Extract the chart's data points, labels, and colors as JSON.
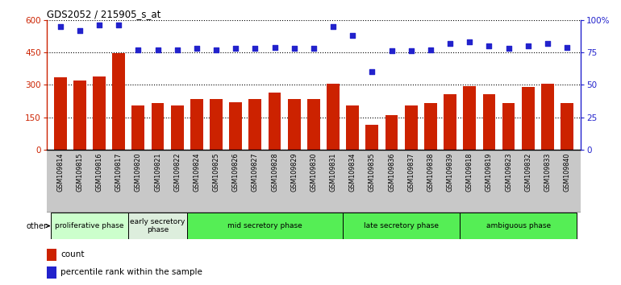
{
  "title": "GDS2052 / 215905_s_at",
  "samples": [
    "GSM109814",
    "GSM109815",
    "GSM109816",
    "GSM109817",
    "GSM109820",
    "GSM109821",
    "GSM109822",
    "GSM109824",
    "GSM109825",
    "GSM109826",
    "GSM109827",
    "GSM109828",
    "GSM109829",
    "GSM109830",
    "GSM109831",
    "GSM109834",
    "GSM109835",
    "GSM109836",
    "GSM109837",
    "GSM109838",
    "GSM109839",
    "GSM109818",
    "GSM109819",
    "GSM109823",
    "GSM109832",
    "GSM109833",
    "GSM109840"
  ],
  "counts": [
    335,
    320,
    340,
    445,
    205,
    215,
    205,
    235,
    235,
    220,
    235,
    265,
    235,
    235,
    305,
    205,
    115,
    160,
    205,
    215,
    255,
    295,
    255,
    215,
    290,
    305,
    215
  ],
  "percentiles": [
    95,
    92,
    96,
    96,
    77,
    77,
    77,
    78,
    77,
    78,
    78,
    79,
    78,
    78,
    95,
    88,
    60,
    76,
    76,
    77,
    82,
    83,
    80,
    78,
    80,
    82,
    79
  ],
  "phases": [
    {
      "label": "proliferative phase",
      "start": 0,
      "end": 3,
      "color": "#ccffcc"
    },
    {
      "label": "early secretory\nphase",
      "start": 4,
      "end": 6,
      "color": "#ddeedd"
    },
    {
      "label": "mid secretory phase",
      "start": 7,
      "end": 14,
      "color": "#55ee55"
    },
    {
      "label": "late secretory phase",
      "start": 15,
      "end": 20,
      "color": "#55ee55"
    },
    {
      "label": "ambiguous phase",
      "start": 21,
      "end": 26,
      "color": "#55ee55"
    }
  ],
  "bar_color": "#cc2200",
  "dot_color": "#2222cc",
  "ylim_left": [
    0,
    600
  ],
  "ylim_right": [
    0,
    100
  ],
  "yticks_left": [
    0,
    150,
    300,
    450,
    600
  ],
  "yticks_right": [
    0,
    25,
    50,
    75,
    100
  ],
  "tick_bg_color": "#c8c8c8",
  "phase_border_color": "#000000",
  "other_label": "other"
}
